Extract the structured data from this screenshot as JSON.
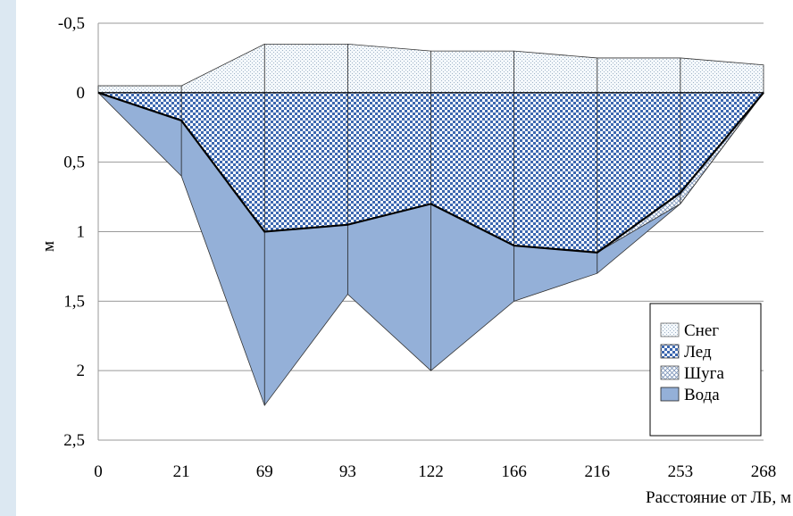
{
  "chart_data": {
    "type": "area",
    "x": [
      0,
      21,
      69,
      93,
      122,
      166,
      216,
      253,
      268
    ],
    "categories": [
      "0",
      "21",
      "69",
      "93",
      "122",
      "166",
      "216",
      "253",
      "268"
    ],
    "series": [
      {
        "name": "Снег",
        "top": [
          -0.05,
          -0.05,
          -0.35,
          -0.35,
          -0.3,
          -0.3,
          -0.25,
          -0.25,
          -0.2
        ],
        "bottom": [
          0,
          0,
          0,
          0,
          0,
          0,
          0,
          0,
          0
        ]
      },
      {
        "name": "Лед",
        "top": [
          0,
          0,
          0,
          0,
          0,
          0,
          0,
          0,
          0
        ],
        "bottom": [
          0,
          0.2,
          1.0,
          0.95,
          0.8,
          1.1,
          1.15,
          0.72,
          0
        ]
      },
      {
        "name": "Шуга",
        "top": [
          0,
          0.2,
          1.0,
          0.95,
          0.8,
          1.1,
          1.15,
          0.72,
          0
        ],
        "bottom": [
          0,
          0.2,
          1.0,
          0.95,
          0.8,
          1.1,
          1.15,
          0.8,
          0
        ]
      },
      {
        "name": "Вода",
        "top": [
          0,
          0.2,
          1.0,
          0.95,
          0.8,
          1.1,
          1.15,
          0.8,
          0
        ],
        "bottom": [
          0,
          0.6,
          2.25,
          1.45,
          2.0,
          1.5,
          1.3,
          0.8,
          0
        ]
      }
    ],
    "ylabel": "м",
    "xlabel": "Расстояние от ЛБ, м",
    "yticks": [
      "-0,5",
      "0",
      "0,5",
      "1",
      "1,5",
      "2",
      "2,5"
    ],
    "ytick_values": [
      -0.5,
      0,
      0.5,
      1,
      1.5,
      2,
      2.5
    ],
    "ylim": [
      -0.5,
      2.5
    ],
    "y_inverted": true,
    "x_axis_categorical": true,
    "grid": "horizontal",
    "legend": "bottom-right",
    "colors": {
      "snow": "#eef4f8",
      "ice": "#6f93c8",
      "slush": "#dfe8f4",
      "water": "#94b0d8",
      "page_frame": "#dce8f2"
    }
  }
}
